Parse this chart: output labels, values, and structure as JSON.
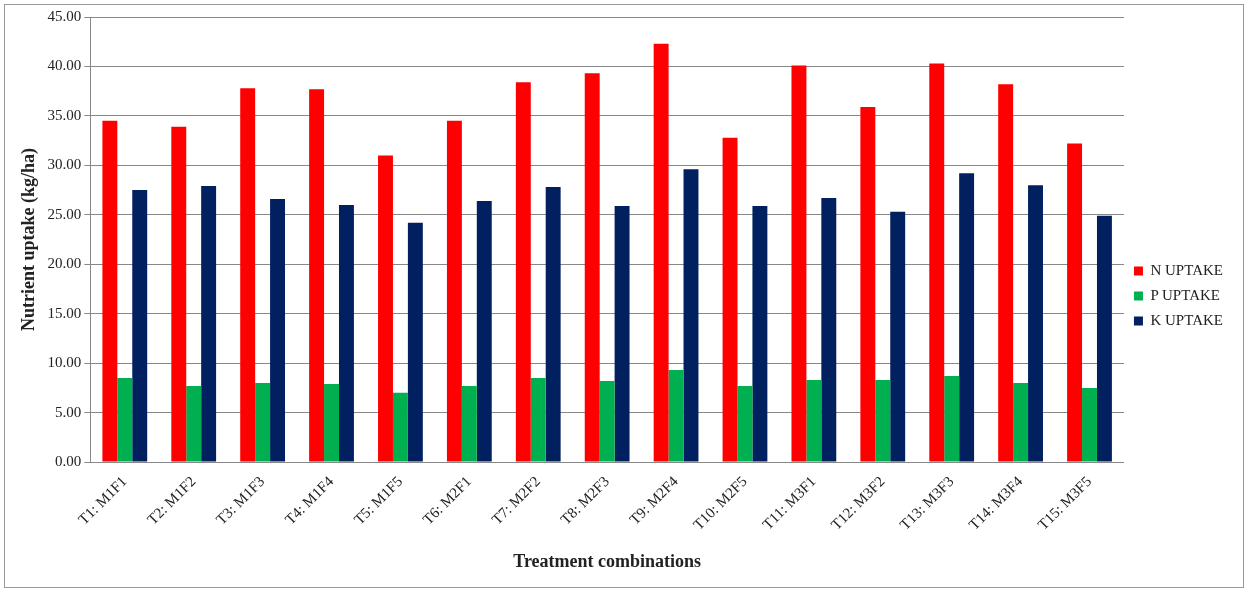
{
  "chart_data": {
    "type": "bar",
    "xlabel": "Treatment combinations",
    "ylabel": "Nutrient uptake (kg/ha)",
    "categories": [
      "T1: M1F1",
      "T2: M1F2",
      "T3: M1F3",
      "T4: M1F4",
      "T5: M1F5",
      "T6: M2F1",
      "T7: M2F2",
      "T8: M2F3",
      "T9: M2F4",
      "T10: M2F5",
      "T11: M3F1",
      "T12: M3F2",
      "T13: M3F3",
      "T14: M3F4",
      "T15: M3F5"
    ],
    "series": [
      {
        "name": "N UPTAKE",
        "color": "#ff0000",
        "values": [
          34.5,
          33.9,
          37.8,
          37.7,
          31.0,
          34.5,
          38.4,
          39.3,
          42.3,
          32.8,
          40.1,
          35.9,
          40.3,
          38.2,
          32.2
        ]
      },
      {
        "name": "P UPTAKE",
        "color": "#00b050",
        "values": [
          8.5,
          7.7,
          8.0,
          7.9,
          7.0,
          7.7,
          8.5,
          8.2,
          9.3,
          7.7,
          8.3,
          8.3,
          8.7,
          8.0,
          7.5
        ]
      },
      {
        "name": "K UPTAKE",
        "color": "#002060",
        "values": [
          27.5,
          27.9,
          26.6,
          26.0,
          24.2,
          26.4,
          27.8,
          25.9,
          29.6,
          25.9,
          26.7,
          25.3,
          29.2,
          28.0,
          24.9
        ]
      }
    ],
    "ylim": [
      0,
      45
    ],
    "yticks": [
      {
        "value": 0,
        "label": "0.00"
      },
      {
        "value": 5,
        "label": "5.00"
      },
      {
        "value": 10,
        "label": "10.00"
      },
      {
        "value": 15,
        "label": "15.00"
      },
      {
        "value": 20,
        "label": "20.00"
      },
      {
        "value": 25,
        "label": "25.00"
      },
      {
        "value": 30,
        "label": "30.00"
      },
      {
        "value": 35,
        "label": "35.00"
      },
      {
        "value": 40,
        "label": "40.00"
      },
      {
        "value": 45,
        "label": "45.00"
      }
    ],
    "grid": "y",
    "legend": "right"
  }
}
